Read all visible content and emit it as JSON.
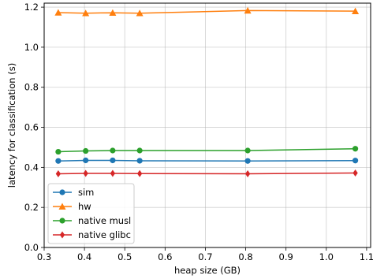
{
  "chart_data": {
    "type": "line",
    "title": "",
    "xlabel": "heap size (GB)",
    "ylabel": "latency for classification (s)",
    "xlim": [
      0.3,
      1.11
    ],
    "ylim": [
      0.0,
      1.22
    ],
    "xticks": [
      0.3,
      0.4,
      0.5,
      0.6,
      0.7,
      0.8,
      0.9,
      1.0,
      1.1
    ],
    "xtick_labels": [
      "0.3",
      "0.4",
      "0.5",
      "0.6",
      "0.7",
      "0.8",
      "0.9",
      "1.0",
      "1.1"
    ],
    "yticks": [
      0.0,
      0.2,
      0.4,
      0.6,
      0.8,
      1.0,
      1.2
    ],
    "ytick_labels": [
      "0.0",
      "0.2",
      "0.4",
      "0.6",
      "0.8",
      "1.0",
      "1.2"
    ],
    "grid": true,
    "legend_position": "lower-left",
    "x": [
      0.335,
      0.403,
      0.47,
      0.537,
      0.805,
      1.072
    ],
    "series": [
      {
        "name": "sim",
        "color": "#1f77b4",
        "marker": "circle",
        "values": [
          0.432,
          0.435,
          0.435,
          0.433,
          0.432,
          0.434
        ]
      },
      {
        "name": "hw",
        "color": "#ff7f0e",
        "marker": "triangle",
        "values": [
          1.173,
          1.17,
          1.172,
          1.17,
          1.183,
          1.18
        ]
      },
      {
        "name": "native musl",
        "color": "#2ca02c",
        "marker": "circle",
        "values": [
          0.478,
          0.482,
          0.484,
          0.484,
          0.484,
          0.493
        ]
      },
      {
        "name": "native glibc",
        "color": "#d62728",
        "marker": "diamond",
        "values": [
          0.368,
          0.37,
          0.37,
          0.369,
          0.368,
          0.372
        ]
      }
    ]
  }
}
